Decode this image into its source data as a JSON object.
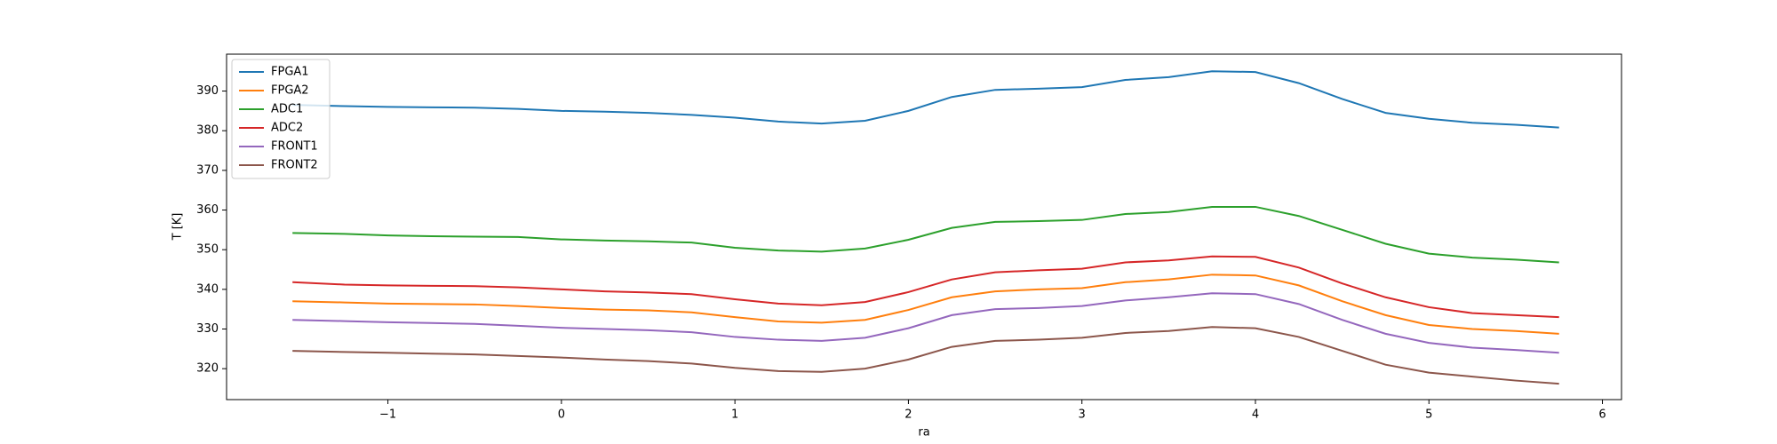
{
  "chart_data": {
    "type": "line",
    "xlabel": "ra",
    "ylabel": "T [K]",
    "x": [
      -1.55,
      -1.25,
      -1.0,
      -0.75,
      -0.5,
      -0.25,
      0,
      0.25,
      0.5,
      0.75,
      1.0,
      1.25,
      1.5,
      1.75,
      2.0,
      2.25,
      2.5,
      2.75,
      3.0,
      3.25,
      3.5,
      3.75,
      4.0,
      4.25,
      4.5,
      4.75,
      5.0,
      5.25,
      5.5,
      5.75
    ],
    "series": [
      {
        "name": "FPGA1",
        "color": "#1f77b4",
        "values": [
          386.5,
          386.2,
          386,
          385.9,
          385.8,
          385.5,
          385,
          384.8,
          384.5,
          384,
          383.3,
          382.3,
          381.8,
          382.5,
          385,
          388.5,
          390.3,
          390.6,
          391,
          392.8,
          393.5,
          395,
          394.8,
          392,
          388,
          384.5,
          383,
          382,
          381.5,
          380.8
        ]
      },
      {
        "name": "FPGA2",
        "color": "#ff7f0e",
        "values": [
          337,
          336.7,
          336.4,
          336.3,
          336.2,
          335.8,
          335.3,
          334.9,
          334.7,
          334.2,
          333,
          331.9,
          331.6,
          332.3,
          334.8,
          338,
          339.5,
          340,
          340.3,
          341.8,
          342.5,
          343.7,
          343.5,
          341,
          337,
          333.5,
          331,
          330,
          329.5,
          328.8
        ]
      },
      {
        "name": "ADC1",
        "color": "#2ca02c",
        "values": [
          354.2,
          354,
          353.6,
          353.4,
          353.3,
          353.2,
          352.6,
          352.3,
          352.1,
          351.8,
          350.5,
          349.8,
          349.5,
          350.3,
          352.5,
          355.5,
          357,
          357.2,
          357.5,
          359,
          359.5,
          360.8,
          360.8,
          358.5,
          355,
          351.5,
          349,
          348,
          347.5,
          346.8
        ]
      },
      {
        "name": "ADC2",
        "color": "#d62728",
        "values": [
          341.8,
          341.2,
          341,
          340.9,
          340.8,
          340.5,
          340,
          339.5,
          339.2,
          338.8,
          337.5,
          336.4,
          336,
          336.8,
          339.3,
          342.5,
          344.3,
          344.8,
          345.2,
          346.8,
          347.3,
          348.3,
          348.2,
          345.5,
          341.5,
          338,
          335.5,
          334,
          333.5,
          333
        ]
      },
      {
        "name": "FRONT1",
        "color": "#9467bd",
        "values": [
          332.3,
          332,
          331.7,
          331.5,
          331.3,
          330.8,
          330.3,
          330,
          329.7,
          329.2,
          328,
          327.3,
          327,
          327.8,
          330.2,
          333.5,
          335,
          335.3,
          335.8,
          337.2,
          338,
          339,
          338.8,
          336.3,
          332.3,
          328.8,
          326.5,
          325.3,
          324.7,
          324
        ]
      },
      {
        "name": "FRONT2",
        "color": "#8c564b",
        "values": [
          324.5,
          324.2,
          324,
          323.8,
          323.6,
          323.2,
          322.8,
          322.3,
          321.9,
          321.3,
          320.2,
          319.4,
          319.2,
          320,
          322.3,
          325.5,
          327,
          327.3,
          327.8,
          329,
          329.5,
          330.5,
          330.2,
          328,
          324.5,
          321,
          319,
          318,
          317,
          316.2
        ]
      }
    ],
    "xlim": [
      -1.93,
      6.11
    ],
    "xticks": [
      {
        "value": -1,
        "label": "−1"
      },
      0,
      1,
      2,
      3,
      4,
      5,
      6
    ],
    "ylim": [
      312.2,
      399.3
    ],
    "yticks": [
      320,
      330,
      340,
      350,
      360,
      370,
      380,
      390
    ],
    "grid": false,
    "legend": "upper left"
  }
}
